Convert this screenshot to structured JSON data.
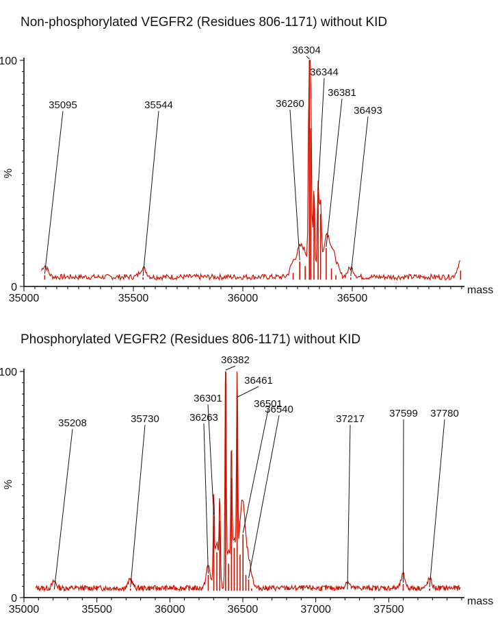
{
  "chart_data": [
    {
      "type": "line",
      "title": "Non-phosphorylated VEGFR2 (Residues 806-1171) without KID",
      "xlabel": "mass",
      "ylabel": "%",
      "xlim": [
        35000,
        37000
      ],
      "ylim": [
        0,
        100
      ],
      "x_ticks": [
        35000,
        35500,
        36000,
        36500
      ],
      "y_ticks": [
        0,
        100
      ],
      "baseline": 3,
      "series": [
        {
          "color": "#cc1100",
          "peaks": [
            {
              "x": 35095,
              "y": 5
            },
            {
              "x": 35544,
              "y": 4
            },
            {
              "x": 36230,
              "y": 6
            },
            {
              "x": 36260,
              "y": 11
            },
            {
              "x": 36285,
              "y": 9
            },
            {
              "x": 36304,
              "y": 100
            },
            {
              "x": 36310,
              "y": 70
            },
            {
              "x": 36325,
              "y": 40
            },
            {
              "x": 36344,
              "y": 42
            },
            {
              "x": 36355,
              "y": 32
            },
            {
              "x": 36381,
              "y": 17
            },
            {
              "x": 36405,
              "y": 8
            },
            {
              "x": 36425,
              "y": 5
            },
            {
              "x": 36493,
              "y": 4
            },
            {
              "x": 36995,
              "y": 7
            }
          ]
        }
      ],
      "annotations": [
        {
          "x": 36304,
          "label": "36304"
        },
        {
          "x": 36344,
          "label": "36344"
        },
        {
          "x": 36381,
          "label": "36381"
        },
        {
          "x": 36260,
          "label": "36260"
        },
        {
          "x": 36493,
          "label": "36493"
        },
        {
          "x": 35095,
          "label": "35095"
        },
        {
          "x": 35544,
          "label": "35544"
        }
      ]
    },
    {
      "type": "line",
      "title": "Phosphorylated VEGFR2 (Residues 806-1171) without KID",
      "xlabel": "mass",
      "ylabel": "%",
      "xlim": [
        35000,
        38000
      ],
      "ylim": [
        0,
        100
      ],
      "x_ticks": [
        35000,
        35500,
        36000,
        36500,
        37000,
        37500
      ],
      "y_ticks": [
        0,
        100
      ],
      "baseline": 3,
      "series": [
        {
          "color": "#cc1100",
          "peaks": [
            {
              "x": 35208,
              "y": 3
            },
            {
              "x": 35730,
              "y": 4
            },
            {
              "x": 36263,
              "y": 10
            },
            {
              "x": 36301,
              "y": 36
            },
            {
              "x": 36322,
              "y": 20
            },
            {
              "x": 36342,
              "y": 34
            },
            {
              "x": 36382,
              "y": 100
            },
            {
              "x": 36402,
              "y": 15
            },
            {
              "x": 36422,
              "y": 53
            },
            {
              "x": 36441,
              "y": 22
            },
            {
              "x": 36461,
              "y": 88
            },
            {
              "x": 36481,
              "y": 19
            },
            {
              "x": 36501,
              "y": 28
            },
            {
              "x": 36521,
              "y": 10
            },
            {
              "x": 36540,
              "y": 8
            },
            {
              "x": 36560,
              "y": 4
            },
            {
              "x": 37217,
              "y": 3
            },
            {
              "x": 37599,
              "y": 6
            },
            {
              "x": 37780,
              "y": 4
            }
          ]
        }
      ],
      "annotations": [
        {
          "x": 36382,
          "label": "36382"
        },
        {
          "x": 36461,
          "label": "36461"
        },
        {
          "x": 36301,
          "label": "36301"
        },
        {
          "x": 36501,
          "label": "36501"
        },
        {
          "x": 36540,
          "label": "36540"
        },
        {
          "x": 36263,
          "label": "36263"
        },
        {
          "x": 35208,
          "label": "35208"
        },
        {
          "x": 35730,
          "label": "35730"
        },
        {
          "x": 37217,
          "label": "37217"
        },
        {
          "x": 37599,
          "label": "37599"
        },
        {
          "x": 37780,
          "label": "37780"
        }
      ]
    }
  ]
}
